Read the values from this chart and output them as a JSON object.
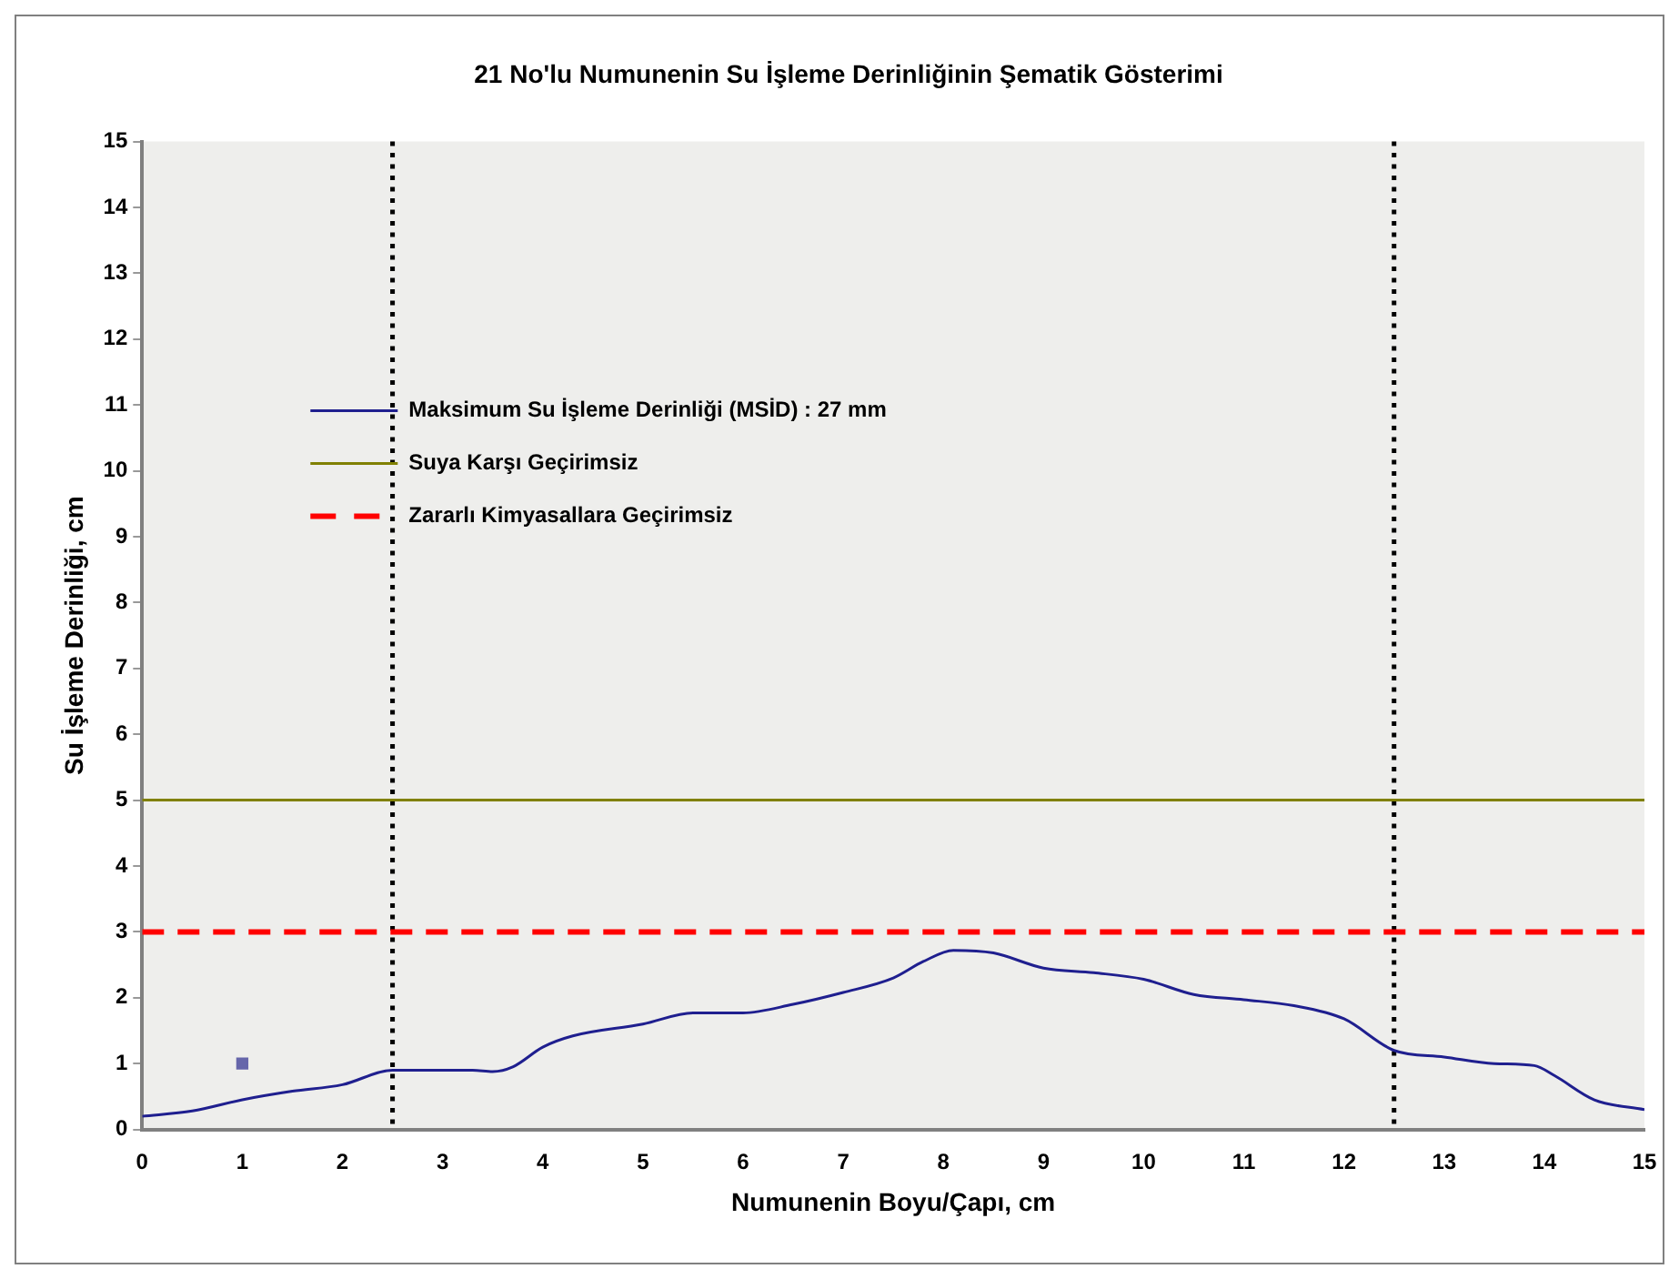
{
  "chart_data": {
    "type": "line",
    "title": "21 No'lu Numunenin Su İşleme Derinliğinin Şematik Gösterimi",
    "xlabel": "Numunenin Boyu/Çapı, cm",
    "ylabel": "Su İşleme Derinliği, cm",
    "xlim": [
      0,
      15
    ],
    "xticks": [
      0,
      1,
      2,
      3,
      4,
      5,
      6,
      7,
      8,
      9,
      10,
      11,
      12,
      13,
      14,
      15
    ],
    "ylim": [
      0,
      15
    ],
    "yticks": [
      0,
      1,
      2,
      3,
      4,
      5,
      6,
      7,
      8,
      9,
      10,
      11,
      12,
      13,
      14,
      15
    ],
    "grid": false,
    "legend": "top left",
    "series": [
      {
        "name": "Maksimum Su İşleme Derinliği (MSİD) : 27 mm",
        "type": "line",
        "color": "#1f1f8f",
        "marker": "none",
        "line_style": "solid",
        "x": [
          0,
          0.5,
          1,
          1.5,
          2,
          2.5,
          3,
          3.3,
          3.5,
          3.7,
          4,
          4.3,
          5,
          5.5,
          6,
          6.5,
          7,
          7.5,
          7.8,
          8.1,
          8.5,
          9,
          9.5,
          10,
          10.5,
          11,
          11.5,
          12,
          12.5,
          13,
          13.5,
          13.9,
          14.1,
          14.5,
          15
        ],
        "values": [
          0.2,
          0.28,
          0.45,
          0.58,
          0.68,
          0.9,
          0.9,
          0.9,
          0.88,
          0.95,
          1.25,
          1.42,
          1.6,
          1.77,
          1.77,
          1.9,
          2.08,
          2.3,
          2.55,
          2.72,
          2.68,
          2.45,
          2.38,
          2.28,
          2.05,
          1.97,
          1.88,
          1.68,
          1.2,
          1.1,
          1.0,
          0.97,
          0.82,
          0.45,
          0.3
        ]
      },
      {
        "name": "Suya Karşı Geçirimsiz",
        "type": "line",
        "color": "#808000",
        "marker": "none",
        "line_style": "solid",
        "x": [
          0,
          15
        ],
        "values": [
          5,
          5
        ]
      },
      {
        "name": "Zararlı Kimyasallara Geçirimsiz",
        "type": "line",
        "color": "#ff0000",
        "marker": "none",
        "line_style": "dashed",
        "x": [
          0,
          15
        ],
        "values": [
          3,
          3
        ]
      },
      {
        "type": "scatter",
        "color": "#6666aa",
        "marker": "square",
        "x": [
          1
        ],
        "values": [
          1
        ]
      }
    ],
    "ref_lines": [
      {
        "axis": "x",
        "value": 2.5,
        "color": "#000000",
        "line_style": "dotted"
      },
      {
        "axis": "x",
        "value": 12.5,
        "color": "#000000",
        "line_style": "dotted"
      }
    ]
  }
}
